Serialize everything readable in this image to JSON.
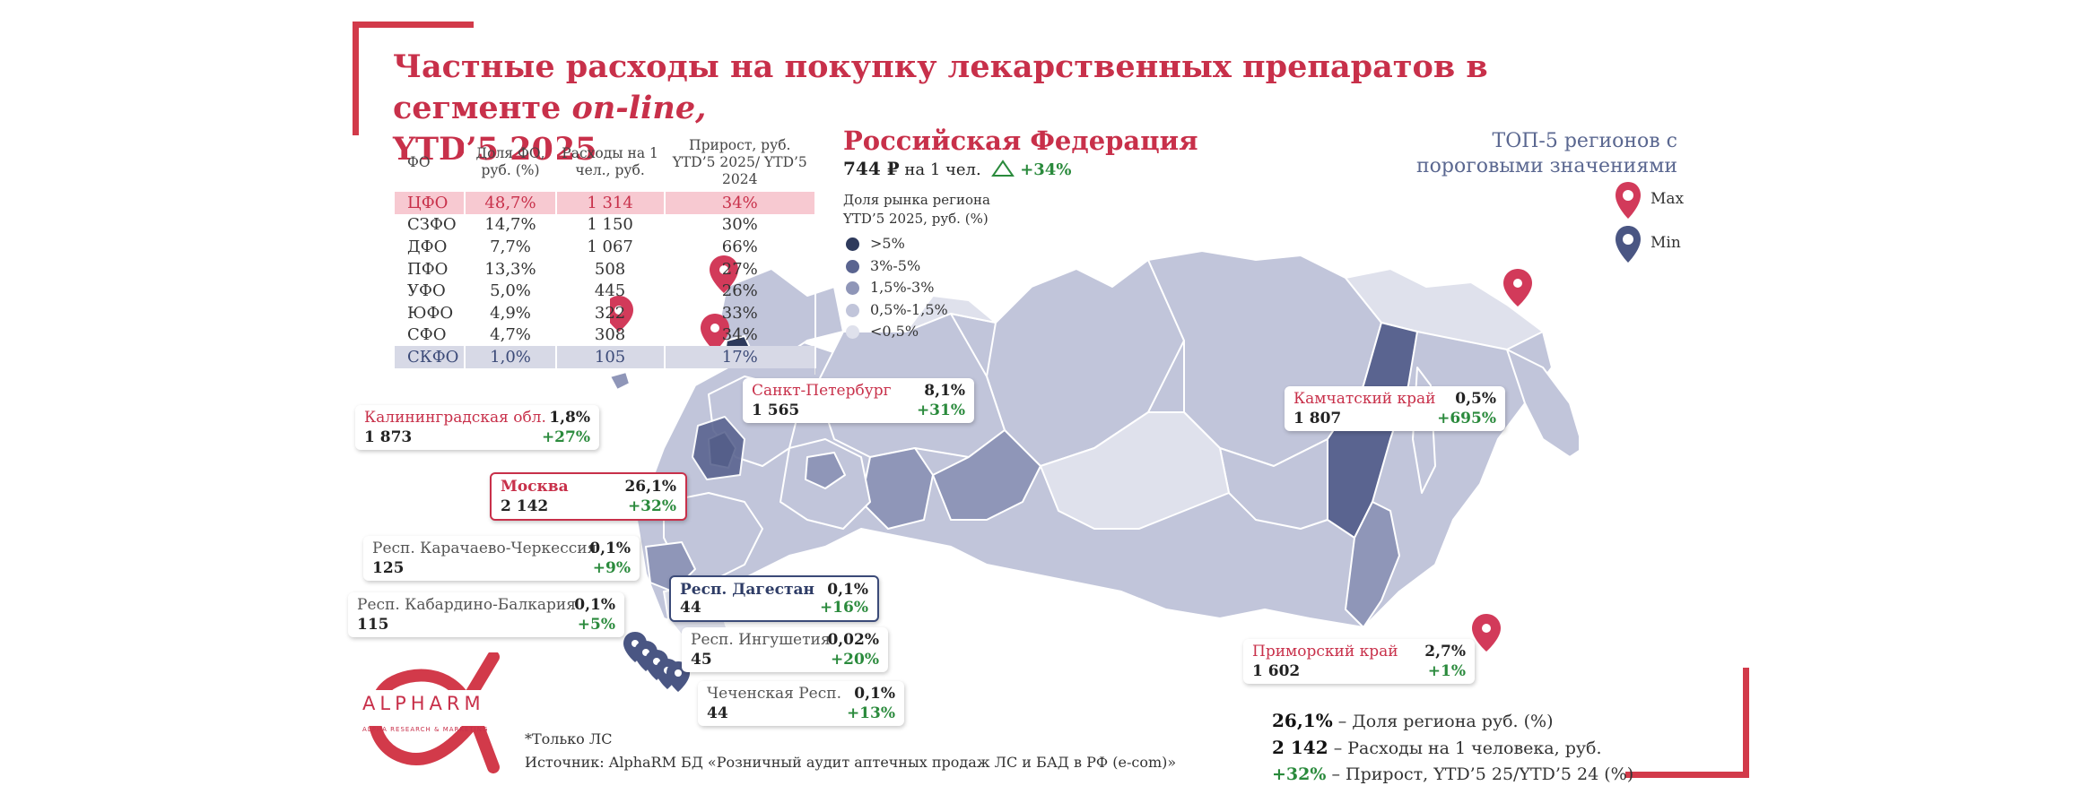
{
  "title": {
    "line1_pre": "Частные расходы на покупку лекарственных препаратов в сегменте ",
    "line1_italic": "on-line,",
    "line2": "YTD’5 2025"
  },
  "table": {
    "headers": [
      "ФО",
      "Доля ФО, руб. (%)",
      "Расходы на 1 чел., руб.",
      "Прирост, руб. YTD’5 2025/ YTD’5 2024"
    ],
    "rows": [
      [
        "ЦФО",
        "48,7%",
        "1 314",
        "34%"
      ],
      [
        "СЗФО",
        "14,7%",
        "1 150",
        "30%"
      ],
      [
        "ДФО",
        "7,7%",
        "1 067",
        "66%"
      ],
      [
        "ПФО",
        "13,3%",
        "508",
        "27%"
      ],
      [
        "УФО",
        "5,0%",
        "445",
        "26%"
      ],
      [
        "ЮФО",
        "4,9%",
        "322",
        "33%"
      ],
      [
        "СФО",
        "4,7%",
        "308",
        "34%"
      ],
      [
        "СКФО",
        "1,0%",
        "105",
        "17%"
      ]
    ]
  },
  "russia": {
    "title": "Российская Федерация",
    "value": "744 ₽",
    "per_person": "на 1 чел.",
    "growth": "+34%"
  },
  "legend": {
    "title_line1": "Доля рынка региона",
    "title_line2": "YTD’5 2025, руб. (%)",
    "items": [
      {
        "label": ">5%",
        "color": "#2e3a5c"
      },
      {
        "label": "3%-5%",
        "color": "#5a6490"
      },
      {
        "label": "1,5%-3%",
        "color": "#8f96b8"
      },
      {
        "label": "0,5%-1,5%",
        "color": "#c1c5da"
      },
      {
        "label": "<0,5%",
        "color": "#dfe1ec"
      }
    ]
  },
  "top5": {
    "line1": "ТОП-5 регионов с",
    "line2": "пороговыми значениями",
    "max_label": "Max",
    "min_label": "Min",
    "max_color": "#d23a5a",
    "min_color": "#4a5683"
  },
  "callouts": {
    "kaliningrad": {
      "name": "Калининградская обл.",
      "share": "1,8%",
      "per_capita": "1 873",
      "growth": "+27%"
    },
    "spb": {
      "name": "Санкт-Петербург",
      "share": "8,1%",
      "per_capita": "1 565",
      "growth": "+31%"
    },
    "moscow": {
      "name": "Москва",
      "share": "26,1%",
      "per_capita": "2 142",
      "growth": "+32%"
    },
    "kchr": {
      "name": "Респ. Карачаево-Черкессия",
      "share": "0,1%",
      "per_capita": "125",
      "growth": "+9%"
    },
    "dagestan": {
      "name": "Респ. Дагестан",
      "share": "0,1%",
      "per_capita": "44",
      "growth": "+16%"
    },
    "kbr": {
      "name": "Респ. Кабардино-Балкария",
      "share": "0,1%",
      "per_capita": "115",
      "growth": "+5%"
    },
    "ingushetia": {
      "name": "Респ. Ингушетия",
      "share": "0,02%",
      "per_capita": "45",
      "growth": "+20%"
    },
    "chechnya": {
      "name": "Чеченская Респ.",
      "share": "0,1%",
      "per_capita": "44",
      "growth": "+13%"
    },
    "kamchatka": {
      "name": "Камчатский край",
      "share": "0,5%",
      "per_capita": "1 807",
      "growth": "+695%"
    },
    "primorsky": {
      "name": "Приморский край",
      "share": "2,7%",
      "per_capita": "1 602",
      "growth": "+1%"
    }
  },
  "key": {
    "share_value": "26,1%",
    "share_text": "– Доля региона руб. (%)",
    "pc_value": "2 142",
    "pc_text": "– Расходы на 1 человека, руб.",
    "growth_value": "+32%",
    "growth_text": "– Прирост, YTD’5 25/YTD’5 24 (%)"
  },
  "note": "*Только ЛС",
  "source": "Источник: AlphaRM БД «Розничный аудит аптечных продаж ЛС и БАД в РФ (e-com)»",
  "logo": {
    "name": "ALPHARM",
    "sub": "ALPHA RESEARCH & MARKETING",
    "color": "#c8304a"
  }
}
